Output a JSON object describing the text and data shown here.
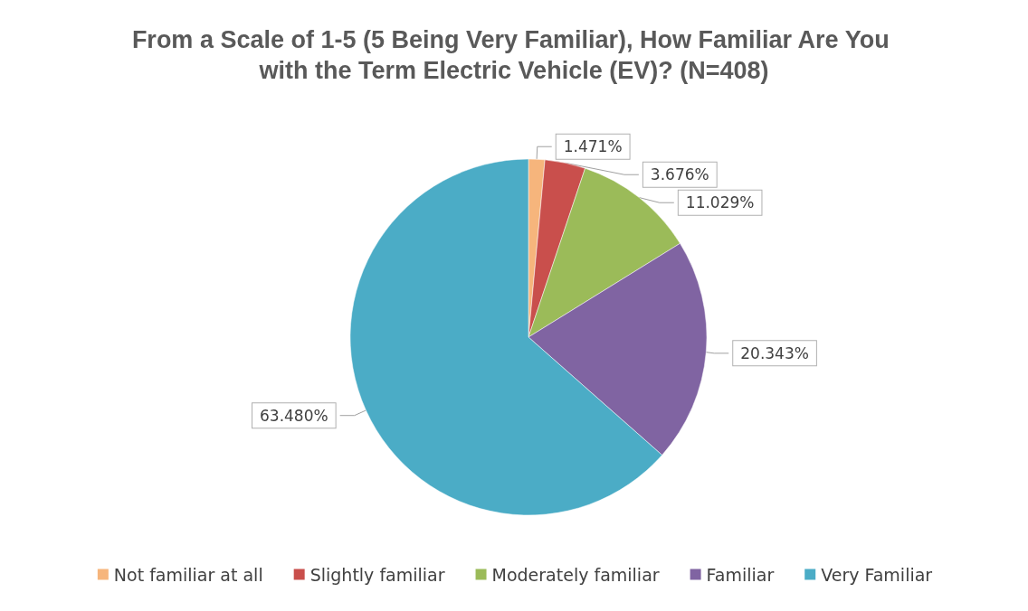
{
  "chart_data": {
    "type": "pie",
    "title": "From a Scale of 1-5 (5 Being Very Familiar), How Familiar Are You with the Term Electric Vehicle (EV)? (N=408)",
    "categories": [
      "Not familiar at all",
      "Slightly familiar",
      "Moderately familiar",
      "Familiar",
      "Very Familiar"
    ],
    "values": [
      1.471,
      3.676,
      11.029,
      20.343,
      63.48
    ],
    "value_labels": [
      "1.471%",
      "3.676%",
      "11.029%",
      "20.343%",
      "63.480%"
    ],
    "colors": [
      "#f6b57c",
      "#c94f4c",
      "#9bbb59",
      "#8064a2",
      "#4bacc6"
    ],
    "legend": "bottom"
  }
}
